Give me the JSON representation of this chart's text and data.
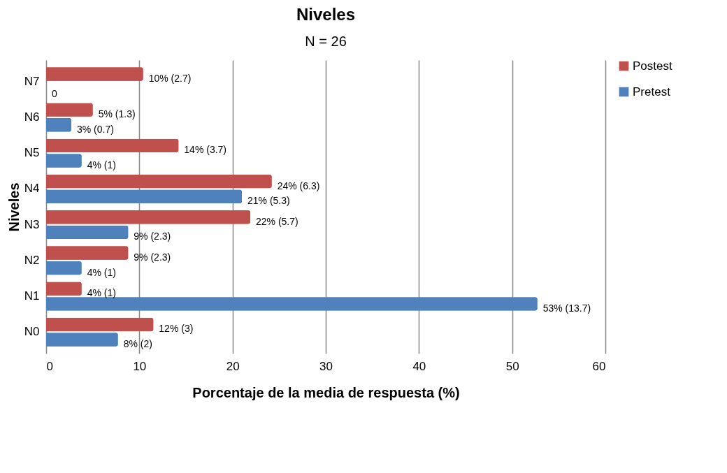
{
  "chart_data": {
    "type": "bar",
    "orientation": "horizontal",
    "title": "Niveles",
    "subtitle": "N = 26",
    "xlabel": "Porcentaje de la media de respuesta (%)",
    "ylabel": "Niveles",
    "categories": [
      "N7",
      "N6",
      "N5",
      "N4",
      "N3",
      "N2",
      "N1",
      "N0"
    ],
    "series": [
      {
        "name": "Postest",
        "color": "#c0504d",
        "values": [
          10.4,
          5,
          14.2,
          24.2,
          21.9,
          8.8,
          3.8,
          11.5
        ],
        "value_labels": [
          "10% (2.7)",
          "5% (1.3)",
          "14% (3.7)",
          "24% (6.3)",
          "22% (5.7)",
          "9% (2.3)",
          "4% (1)",
          "12% (3)"
        ]
      },
      {
        "name": "Pretest",
        "color": "#4f81bd",
        "values": [
          0,
          2.7,
          3.8,
          21,
          8.8,
          3.8,
          52.7,
          7.7
        ],
        "value_labels": [
          "0",
          "3% (0.7)",
          "4% (1)",
          "21% (5.3)",
          "9% (2.3)",
          "4% (1)",
          "53% (13.7)",
          "8% (2)"
        ]
      }
    ],
    "xlim": [
      0,
      60
    ],
    "xticks": [
      0,
      10,
      20,
      30,
      40,
      50,
      60
    ],
    "grid": "x",
    "legend": "right"
  }
}
